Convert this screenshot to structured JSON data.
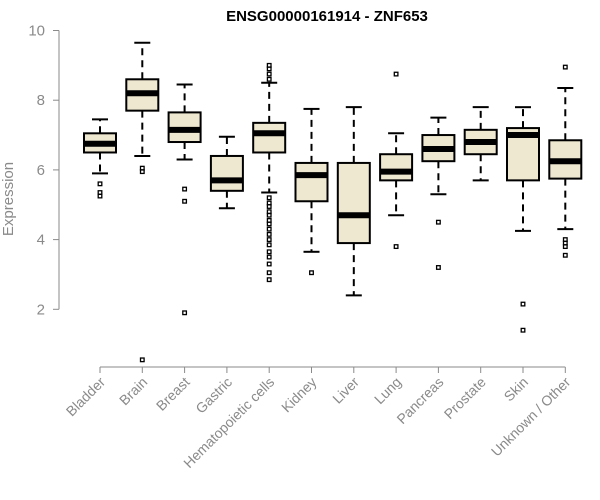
{
  "chart_data": {
    "type": "boxplot",
    "title": "ENSG00000161914 - ZNF653",
    "ylabel": "Expression",
    "xlabel": "",
    "ylim": [
      0,
      10
    ],
    "yticks": [
      2,
      4,
      6,
      8,
      10
    ],
    "grid": false,
    "legend": "none",
    "box_fill": "#efe8d0",
    "categories": [
      "Bladder",
      "Brain",
      "Breast",
      "Gastric",
      "Hematopoietic cells",
      "Kidney",
      "Liver",
      "Lung",
      "Pancreas",
      "Prostate",
      "Skin",
      "Unknown / Other"
    ],
    "boxes": [
      {
        "category": "Bladder",
        "whisker_low": 5.9,
        "q1": 6.5,
        "median": 6.75,
        "q3": 7.05,
        "whisker_high": 7.45,
        "outliers": [
          5.35,
          5.25,
          5.6
        ]
      },
      {
        "category": "Brain",
        "whisker_low": 6.4,
        "q1": 7.7,
        "median": 8.2,
        "q3": 8.6,
        "whisker_high": 9.65,
        "outliers": [
          6.05,
          5.95,
          0.55
        ]
      },
      {
        "category": "Breast",
        "whisker_low": 6.3,
        "q1": 6.8,
        "median": 7.15,
        "q3": 7.65,
        "whisker_high": 8.45,
        "outliers": [
          5.45,
          5.1,
          1.9
        ]
      },
      {
        "category": "Gastric",
        "whisker_low": 4.9,
        "q1": 5.4,
        "median": 5.7,
        "q3": 6.4,
        "whisker_high": 6.95,
        "outliers": []
      },
      {
        "category": "Hematopoietic cells",
        "whisker_low": 5.35,
        "q1": 6.5,
        "median": 7.05,
        "q3": 7.35,
        "whisker_high": 8.5,
        "outliers": [
          9.0,
          8.9,
          8.75,
          8.6,
          5.2,
          5.05,
          4.95,
          4.8,
          4.7,
          4.55,
          4.45,
          4.3,
          4.15,
          4.0,
          3.85,
          3.65,
          3.5,
          3.3,
          3.05,
          2.85
        ]
      },
      {
        "category": "Kidney",
        "whisker_low": 3.65,
        "q1": 5.1,
        "median": 5.85,
        "q3": 6.2,
        "whisker_high": 7.75,
        "outliers": [
          3.05
        ]
      },
      {
        "category": "Liver",
        "whisker_low": 2.4,
        "q1": 3.9,
        "median": 4.7,
        "q3": 6.2,
        "whisker_high": 7.8,
        "outliers": []
      },
      {
        "category": "Lung",
        "whisker_low": 4.7,
        "q1": 5.7,
        "median": 5.95,
        "q3": 6.45,
        "whisker_high": 7.05,
        "outliers": [
          8.75,
          3.8
        ]
      },
      {
        "category": "Pancreas",
        "whisker_low": 5.3,
        "q1": 6.25,
        "median": 6.6,
        "q3": 7.0,
        "whisker_high": 7.5,
        "outliers": [
          4.5,
          3.2
        ]
      },
      {
        "category": "Prostate",
        "whisker_low": 5.7,
        "q1": 6.45,
        "median": 6.8,
        "q3": 7.15,
        "whisker_high": 7.8,
        "outliers": []
      },
      {
        "category": "Skin",
        "whisker_low": 4.25,
        "q1": 5.7,
        "median": 7.0,
        "q3": 7.2,
        "whisker_high": 7.8,
        "outliers": [
          2.15,
          1.4
        ]
      },
      {
        "category": "Unknown / Other",
        "whisker_low": 4.3,
        "q1": 5.75,
        "median": 6.25,
        "q3": 6.85,
        "whisker_high": 8.35,
        "outliers": [
          8.95,
          4.0,
          3.9,
          3.8,
          3.55
        ]
      }
    ]
  }
}
